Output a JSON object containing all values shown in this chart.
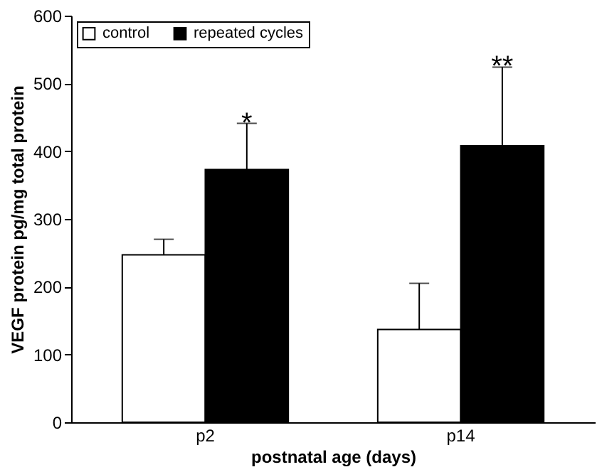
{
  "chart_data": {
    "type": "bar",
    "xlabel": "postnatal age (days)",
    "ylabel": "VEGF protein pg/mg total protein",
    "categories": [
      "p2",
      "p14"
    ],
    "series": [
      {
        "name": "control",
        "color": "#ffffff",
        "values": [
          247,
          137
        ],
        "errors": [
          [
            247,
            270
          ],
          [
            137,
            205
          ]
        ]
      },
      {
        "name": "repeated cycles",
        "color": "#000000",
        "values": [
          373,
          408
        ],
        "errors": [
          [
            373,
            441
          ],
          [
            408,
            524
          ]
        ]
      }
    ],
    "annotations": [
      "*",
      "**"
    ],
    "ylim": [
      0,
      600
    ],
    "yticks": [
      0,
      100,
      200,
      300,
      400,
      500,
      600
    ],
    "grid": false,
    "legend": "top left"
  }
}
